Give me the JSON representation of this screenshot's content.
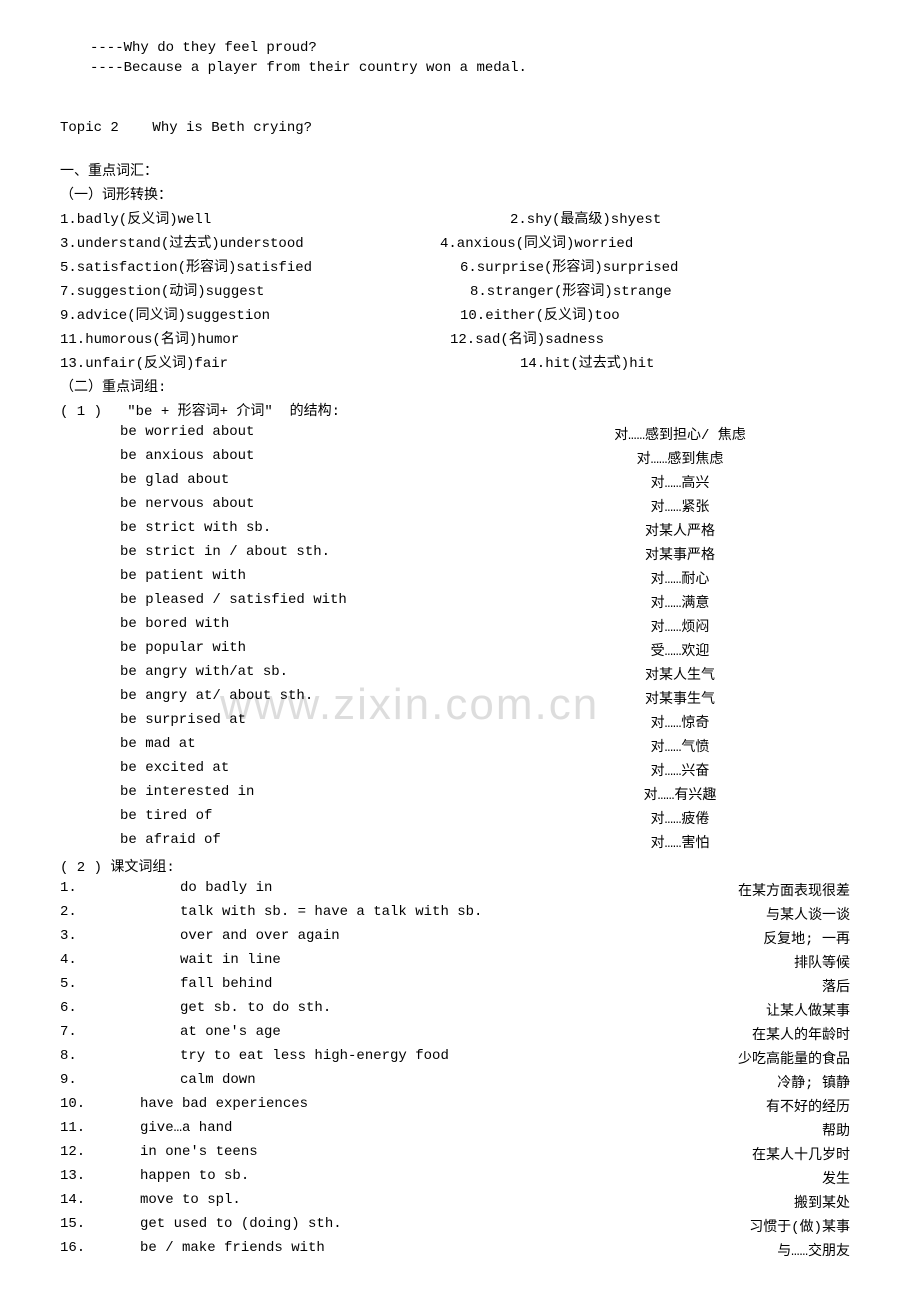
{
  "intro": {
    "line1": "----Why do they feel proud?",
    "line2": "----Because a player from their country won a medal."
  },
  "topic": "Topic 2    Why is Beth crying?",
  "section1": {
    "title": "一、重点词汇：",
    "subtitle1": "（一）词形转换：",
    "words": [
      {
        "left": "   1.badly(反义词)well",
        "right": "2.shy(最高级)shyest"
      },
      {
        "left": "3.understand(过去式)understood",
        "right": "4.anxious(同义词)worried"
      },
      {
        "left": "5.satisfaction(形容词)satisfied",
        "right": "6.surprise(形容词)surprised"
      },
      {
        "left": "7.suggestion(动词)suggest",
        "right": "8.stranger(形容词)strange"
      },
      {
        "left": "9.advice(同义词)suggestion",
        "right": "10.either(反义词)too"
      },
      {
        "left": "11.humorous(名词)humor",
        "right": "12.sad(名词)sadness"
      },
      {
        "left": "13.unfair(反义词)fair",
        "right": "14.hit(过去式)hit"
      }
    ],
    "subtitle2": "（二）重点词组:",
    "group1_title": "( 1 )   \"be + 形容词+ 介词\"  的结构:",
    "be_phrases": [
      {
        "en": "be worried about",
        "cn": "对……感到担心/ 焦虑"
      },
      {
        "en": "be anxious about",
        "cn": "对……感到焦虑"
      },
      {
        "en": "be glad about",
        "cn": "对……高兴"
      },
      {
        "en": "be nervous about",
        "cn": "对……紧张"
      },
      {
        "en": "be strict with sb.",
        "cn": "对某人严格"
      },
      {
        "en": "be strict in / about sth.",
        "cn": "对某事严格"
      },
      {
        "en": "be patient with",
        "cn": "对……耐心"
      },
      {
        "en": "be pleased / satisfied with",
        "cn": "对……满意"
      },
      {
        "en": "be bored with",
        "cn": "对……烦闷"
      },
      {
        "en": "be popular with",
        "cn": "受……欢迎"
      },
      {
        "en": "be angry with/at sb.",
        "cn": "对某人生气"
      },
      {
        "en": "be angry at/ about sth.",
        "cn": "对某事生气"
      },
      {
        "en": "be surprised at",
        "cn": "对……惊奇"
      },
      {
        "en": "be mad at",
        "cn": "对……气愤"
      },
      {
        "en": "be excited at",
        "cn": "对……兴奋"
      },
      {
        "en": "be interested in",
        "cn": "对……有兴趣"
      },
      {
        "en": "be tired of",
        "cn": "对……疲倦"
      },
      {
        "en": "be afraid of",
        "cn": "对……害怕"
      }
    ],
    "group2_title": "( 2 ) 课文词组:",
    "text_phrases": [
      {
        "num": "1.",
        "en": "do badly in",
        "cn": "在某方面表现很差"
      },
      {
        "num": "2.",
        "en": "talk with sb. = have a talk with sb.",
        "cn": "与某人谈一谈"
      },
      {
        "num": "3.",
        "en": "over and over again",
        "cn": "反复地; 一再"
      },
      {
        "num": "4.",
        "en": "wait in line",
        "cn": "排队等候"
      },
      {
        "num": "5.",
        "en": "fall behind",
        "cn": "落后"
      },
      {
        "num": "6.",
        "en": "get sb. to do sth.",
        "cn": "让某人做某事"
      },
      {
        "num": "7.",
        "en": "at one's age",
        "cn": "在某人的年龄时"
      },
      {
        "num": "8.",
        "en": "try to eat less high-energy food",
        "cn": "少吃高能量的食品"
      },
      {
        "num": "9.",
        "en": "calm down",
        "cn": "冷静; 镇静"
      },
      {
        "num": "10.",
        "en": "have bad experiences",
        "cn": "有不好的经历"
      },
      {
        "num": "11.",
        "en": "give…a hand",
        "cn": "帮助"
      },
      {
        "num": "12.",
        "en": "in one's teens",
        "cn": "在某人十几岁时"
      },
      {
        "num": "13.",
        "en": "happen to sb.",
        "cn": "发生"
      },
      {
        "num": "14.",
        "en": "move to spl.",
        "cn": "搬到某处"
      },
      {
        "num": "15.",
        "en": "get used to (doing) sth.",
        "cn": "习惯于(做)某事"
      },
      {
        "num": "16.",
        "en": "be / make friends with",
        "cn": "与……交朋友"
      }
    ]
  },
  "watermark": "www.zixin.com.cn"
}
